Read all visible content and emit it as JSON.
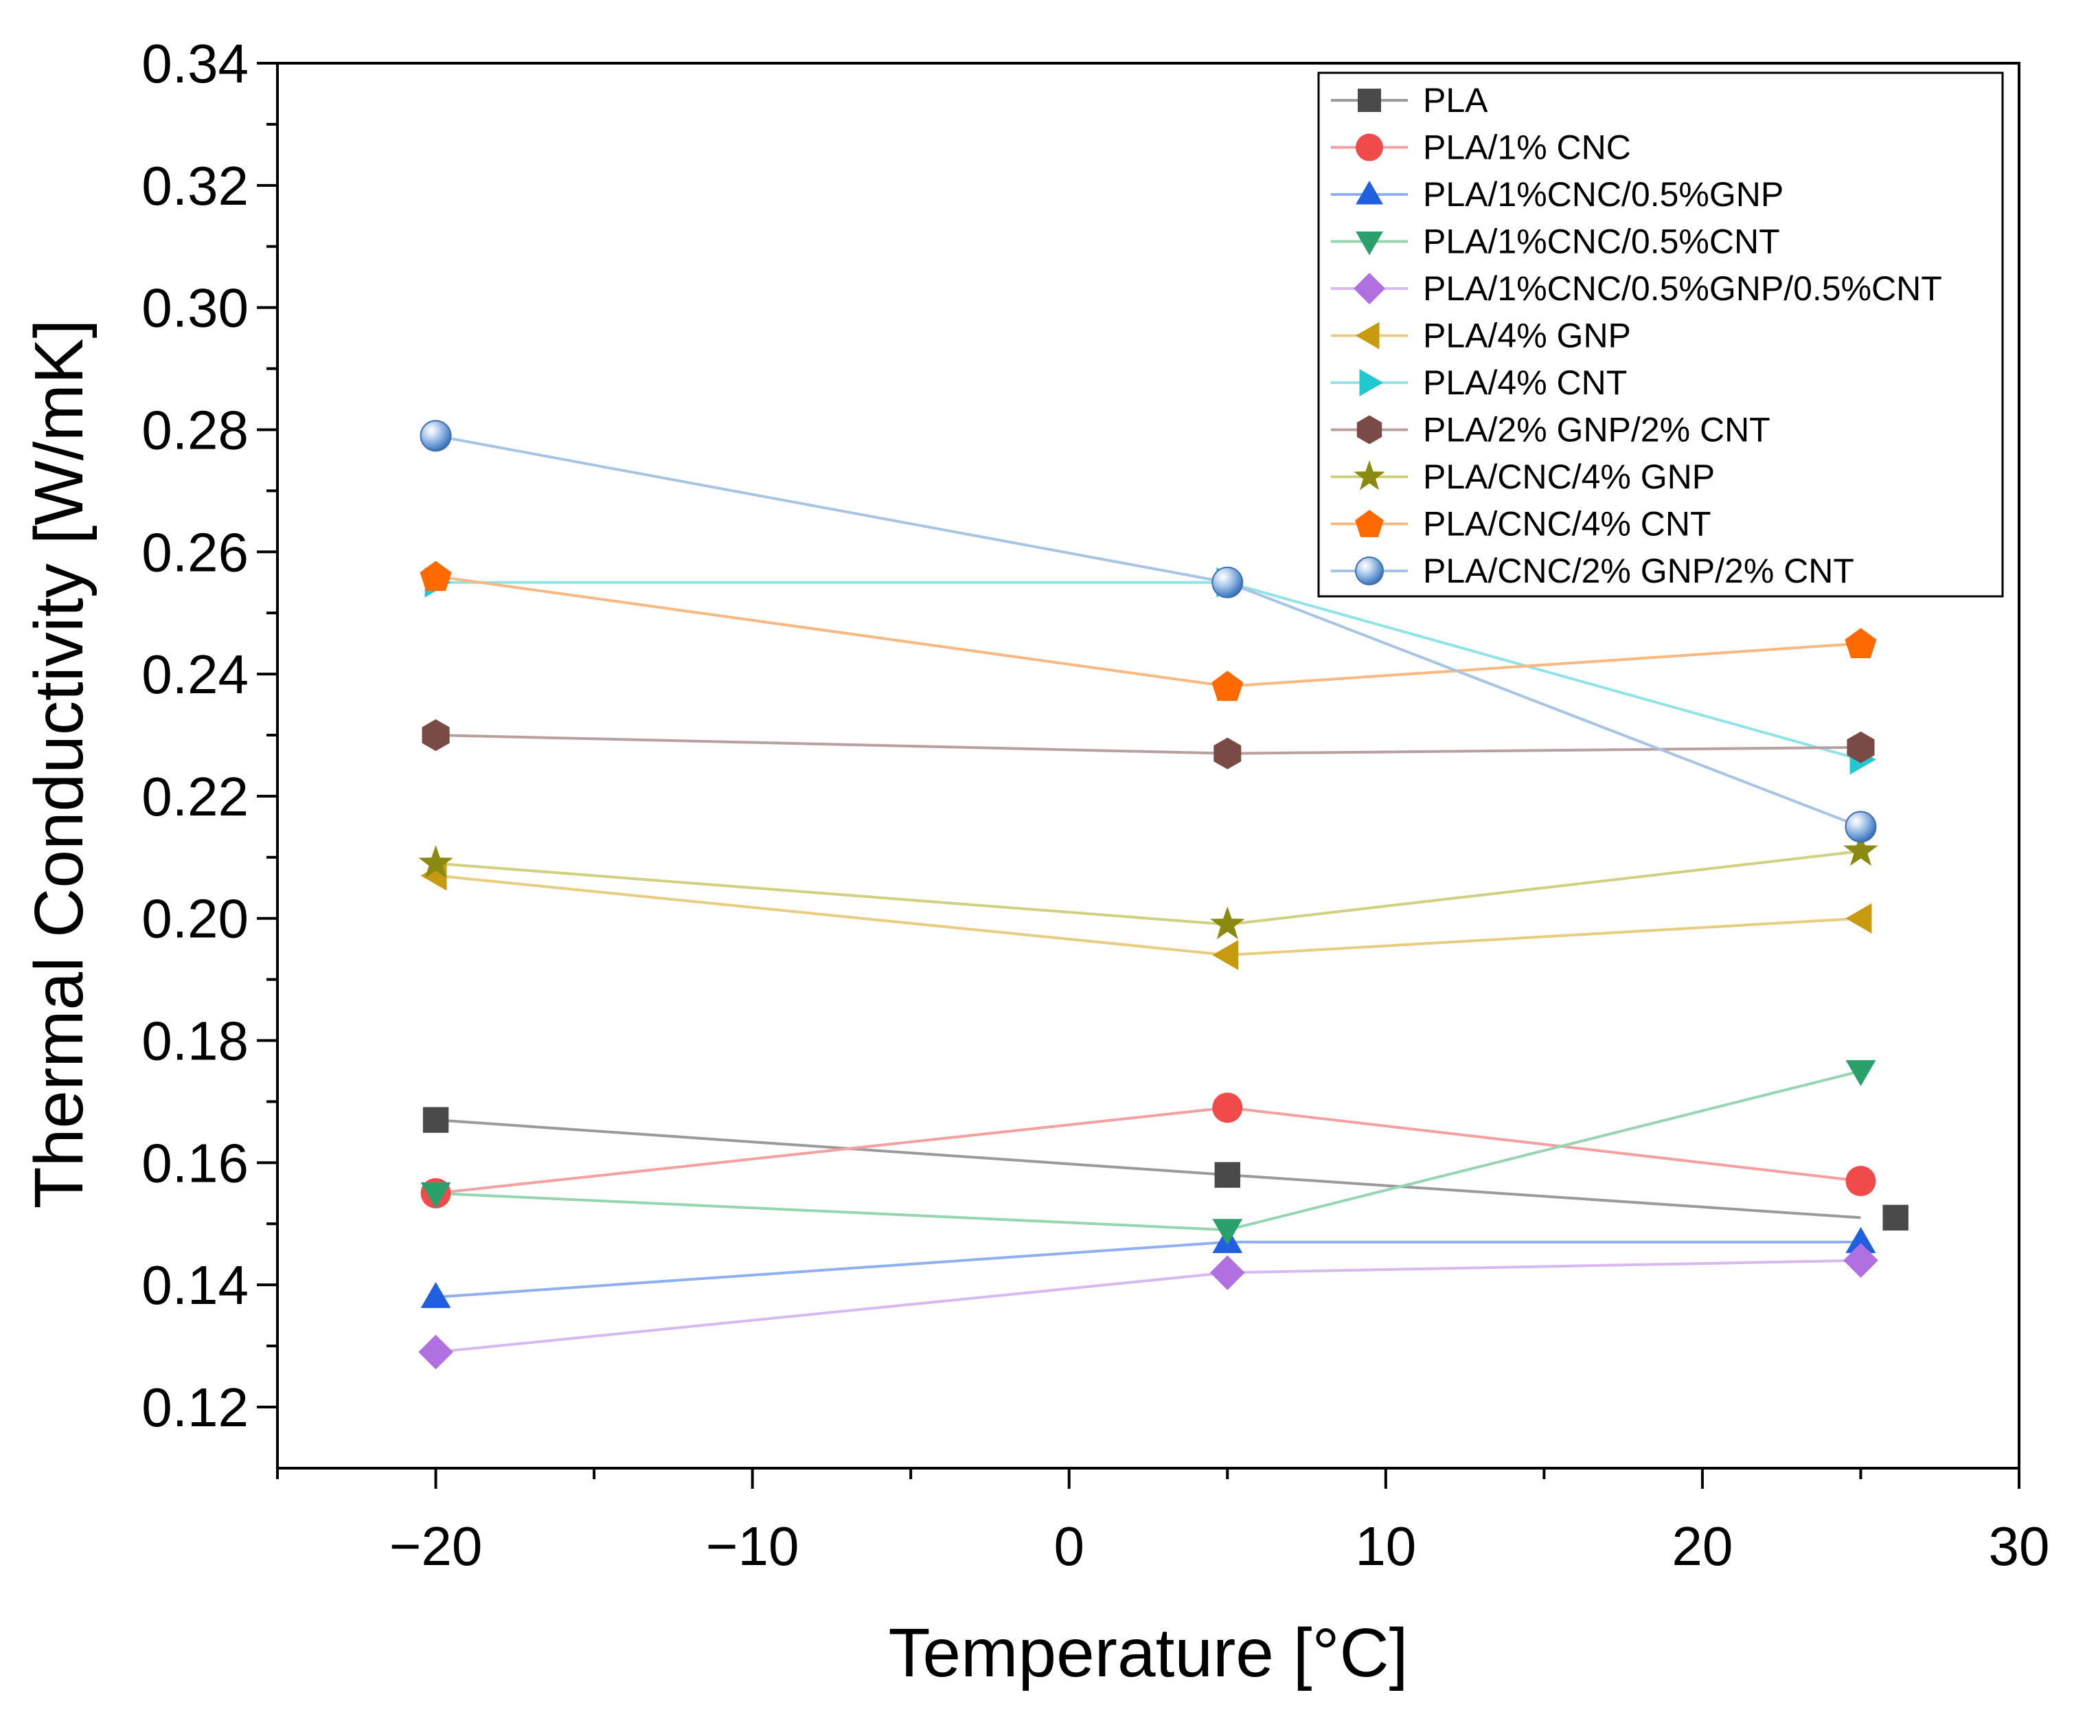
{
  "chart_data": {
    "type": "line",
    "title": "",
    "xlabel": "Temperature [°C]",
    "ylabel": "Thermal Conductivity [W/mK]",
    "xlim": [
      -25,
      30
    ],
    "ylim": [
      0.11,
      0.34
    ],
    "x_ticks": [
      -20,
      -10,
      0,
      10,
      20,
      30
    ],
    "x_tick_labels": [
      "−20",
      "−10",
      "0",
      "10",
      "20",
      "30"
    ],
    "y_ticks": [
      0.12,
      0.14,
      0.16,
      0.18,
      0.2,
      0.22,
      0.24,
      0.26,
      0.28,
      0.3,
      0.32,
      0.34
    ],
    "y_tick_labels": [
      "0.12",
      "0.14",
      "0.16",
      "0.18",
      "0.20",
      "0.22",
      "0.24",
      "0.26",
      "0.28",
      "0.30",
      "0.32",
      "0.34"
    ],
    "grid": false,
    "legend_position": "top-right",
    "series": [
      {
        "name": "PLA",
        "marker": "square",
        "color": "#4a4a4a",
        "line_color": "#9a9a9a",
        "x": [
          -20,
          5,
          26.1
        ],
        "y": [
          0.167,
          0.158,
          0.151
        ],
        "line_x": [
          -20,
          5,
          25
        ]
      },
      {
        "name": "PLA/1% CNC",
        "marker": "circle",
        "color": "#f04a4a",
        "line_color": "#f4a0a0",
        "x": [
          -20,
          5,
          25
        ],
        "y": [
          0.155,
          0.169,
          0.157
        ]
      },
      {
        "name": "PLA/1%CNC/0.5%GNP",
        "marker": "triangle-up",
        "color": "#1f5fe0",
        "line_color": "#8fb0f0",
        "x": [
          -20,
          5,
          25
        ],
        "y": [
          0.138,
          0.147,
          0.147
        ]
      },
      {
        "name": "PLA/1%CNC/0.5%CNT",
        "marker": "triangle-down",
        "color": "#2aa06a",
        "line_color": "#95d5b0",
        "x": [
          -20,
          5,
          25
        ],
        "y": [
          0.155,
          0.149,
          0.175
        ]
      },
      {
        "name": "PLA/1%CNC/0.5%GNP/0.5%CNT",
        "marker": "diamond",
        "color": "#b070e0",
        "line_color": "#d8b8f0",
        "x": [
          -20,
          5,
          25
        ],
        "y": [
          0.129,
          0.142,
          0.144
        ]
      },
      {
        "name": "PLA/4% GNP",
        "marker": "triangle-left",
        "color": "#c89a10",
        "line_color": "#e8cc80",
        "x": [
          -20,
          5,
          25
        ],
        "y": [
          0.207,
          0.194,
          0.2
        ]
      },
      {
        "name": "PLA/4% CNT",
        "marker": "triangle-right",
        "color": "#20c8d0",
        "line_color": "#90e4e8",
        "x": [
          -20,
          5,
          25
        ],
        "y": [
          0.255,
          0.255,
          0.226
        ]
      },
      {
        "name": "PLA/2% GNP/2% CNT",
        "marker": "hexagon",
        "color": "#7a4a46",
        "line_color": "#b8a0a0",
        "x": [
          -20,
          5,
          25
        ],
        "y": [
          0.23,
          0.227,
          0.228
        ]
      },
      {
        "name": "PLA/CNC/4% GNP",
        "marker": "star",
        "color": "#8a8a10",
        "line_color": "#d0d080",
        "x": [
          -20,
          5,
          25
        ],
        "y": [
          0.209,
          0.199,
          0.211
        ]
      },
      {
        "name": "PLA/CNC/4% CNT",
        "marker": "pentagon",
        "color": "#ff6a00",
        "line_color": "#f8b880",
        "x": [
          -20,
          5,
          25
        ],
        "y": [
          0.256,
          0.238,
          0.245
        ]
      },
      {
        "name": "PLA/CNC/2% GNP/2% CNT",
        "marker": "sphere",
        "color": "#5a90d0",
        "line_color": "#a8c4e4",
        "x": [
          -20,
          5,
          25
        ],
        "y": [
          0.279,
          0.255,
          0.215
        ]
      }
    ]
  }
}
